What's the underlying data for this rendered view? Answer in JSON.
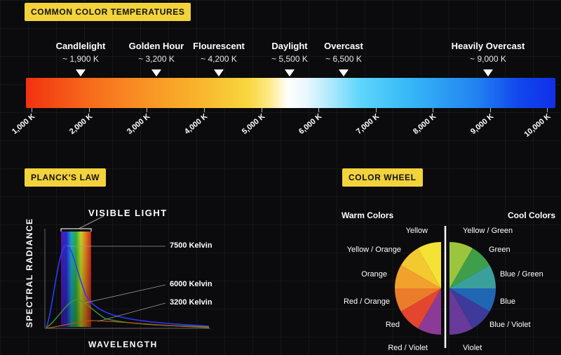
{
  "sections": {
    "temperatures_title": "COMMON COLOR TEMPERATURES",
    "planck_title": "PLANCK'S LAW",
    "wheel_title": "COLOR WHEEL"
  },
  "temperature_markers": [
    {
      "name": "Candlelight",
      "value": "~ 1,900 K"
    },
    {
      "name": "Golden Hour",
      "value": "~ 3,200 K"
    },
    {
      "name": "Flourescent",
      "value": "~ 4,200 K"
    },
    {
      "name": "Daylight",
      "value": "~ 5,500 K"
    },
    {
      "name": "Overcast",
      "value": "~ 6,500 K"
    },
    {
      "name": "Heavily Overcast",
      "value": "~ 9,000 K"
    }
  ],
  "scale_ticks": [
    "1,000 K",
    "2,000 K",
    "3,000 K",
    "4,000 K",
    "5,000 K",
    "6,000 K",
    "7,000 K",
    "8,000 K",
    "9,000 K",
    "10,000 K"
  ],
  "planck": {
    "visible_light": "VISIBLE LIGHT",
    "y_label": "SPECTRAL RADIANCE",
    "x_label": "WAVELENGTH",
    "curves": [
      "7500 Kelvin",
      "6000 Kelvin",
      "3200 Kelvin"
    ]
  },
  "wheel": {
    "warm_title": "Warm Colors",
    "cool_title": "Cool Colors",
    "warm": [
      "Yellow",
      "Yellow / Orange",
      "Orange",
      "Red / Orange",
      "Red",
      "Red / Violet"
    ],
    "cool": [
      "Yellow / Green",
      "Green",
      "Blue / Green",
      "Blue",
      "Blue / Violet",
      "Violet"
    ],
    "colors": {
      "warm": [
        "#f4e335",
        "#f4c92f",
        "#f2a12c",
        "#ea7c2b",
        "#e3452d",
        "#8c3a98"
      ],
      "cool": [
        "#9bc53d",
        "#3f9e48",
        "#3aa09c",
        "#2166b2",
        "#3d3a9c",
        "#6a3a9a"
      ]
    }
  }
}
